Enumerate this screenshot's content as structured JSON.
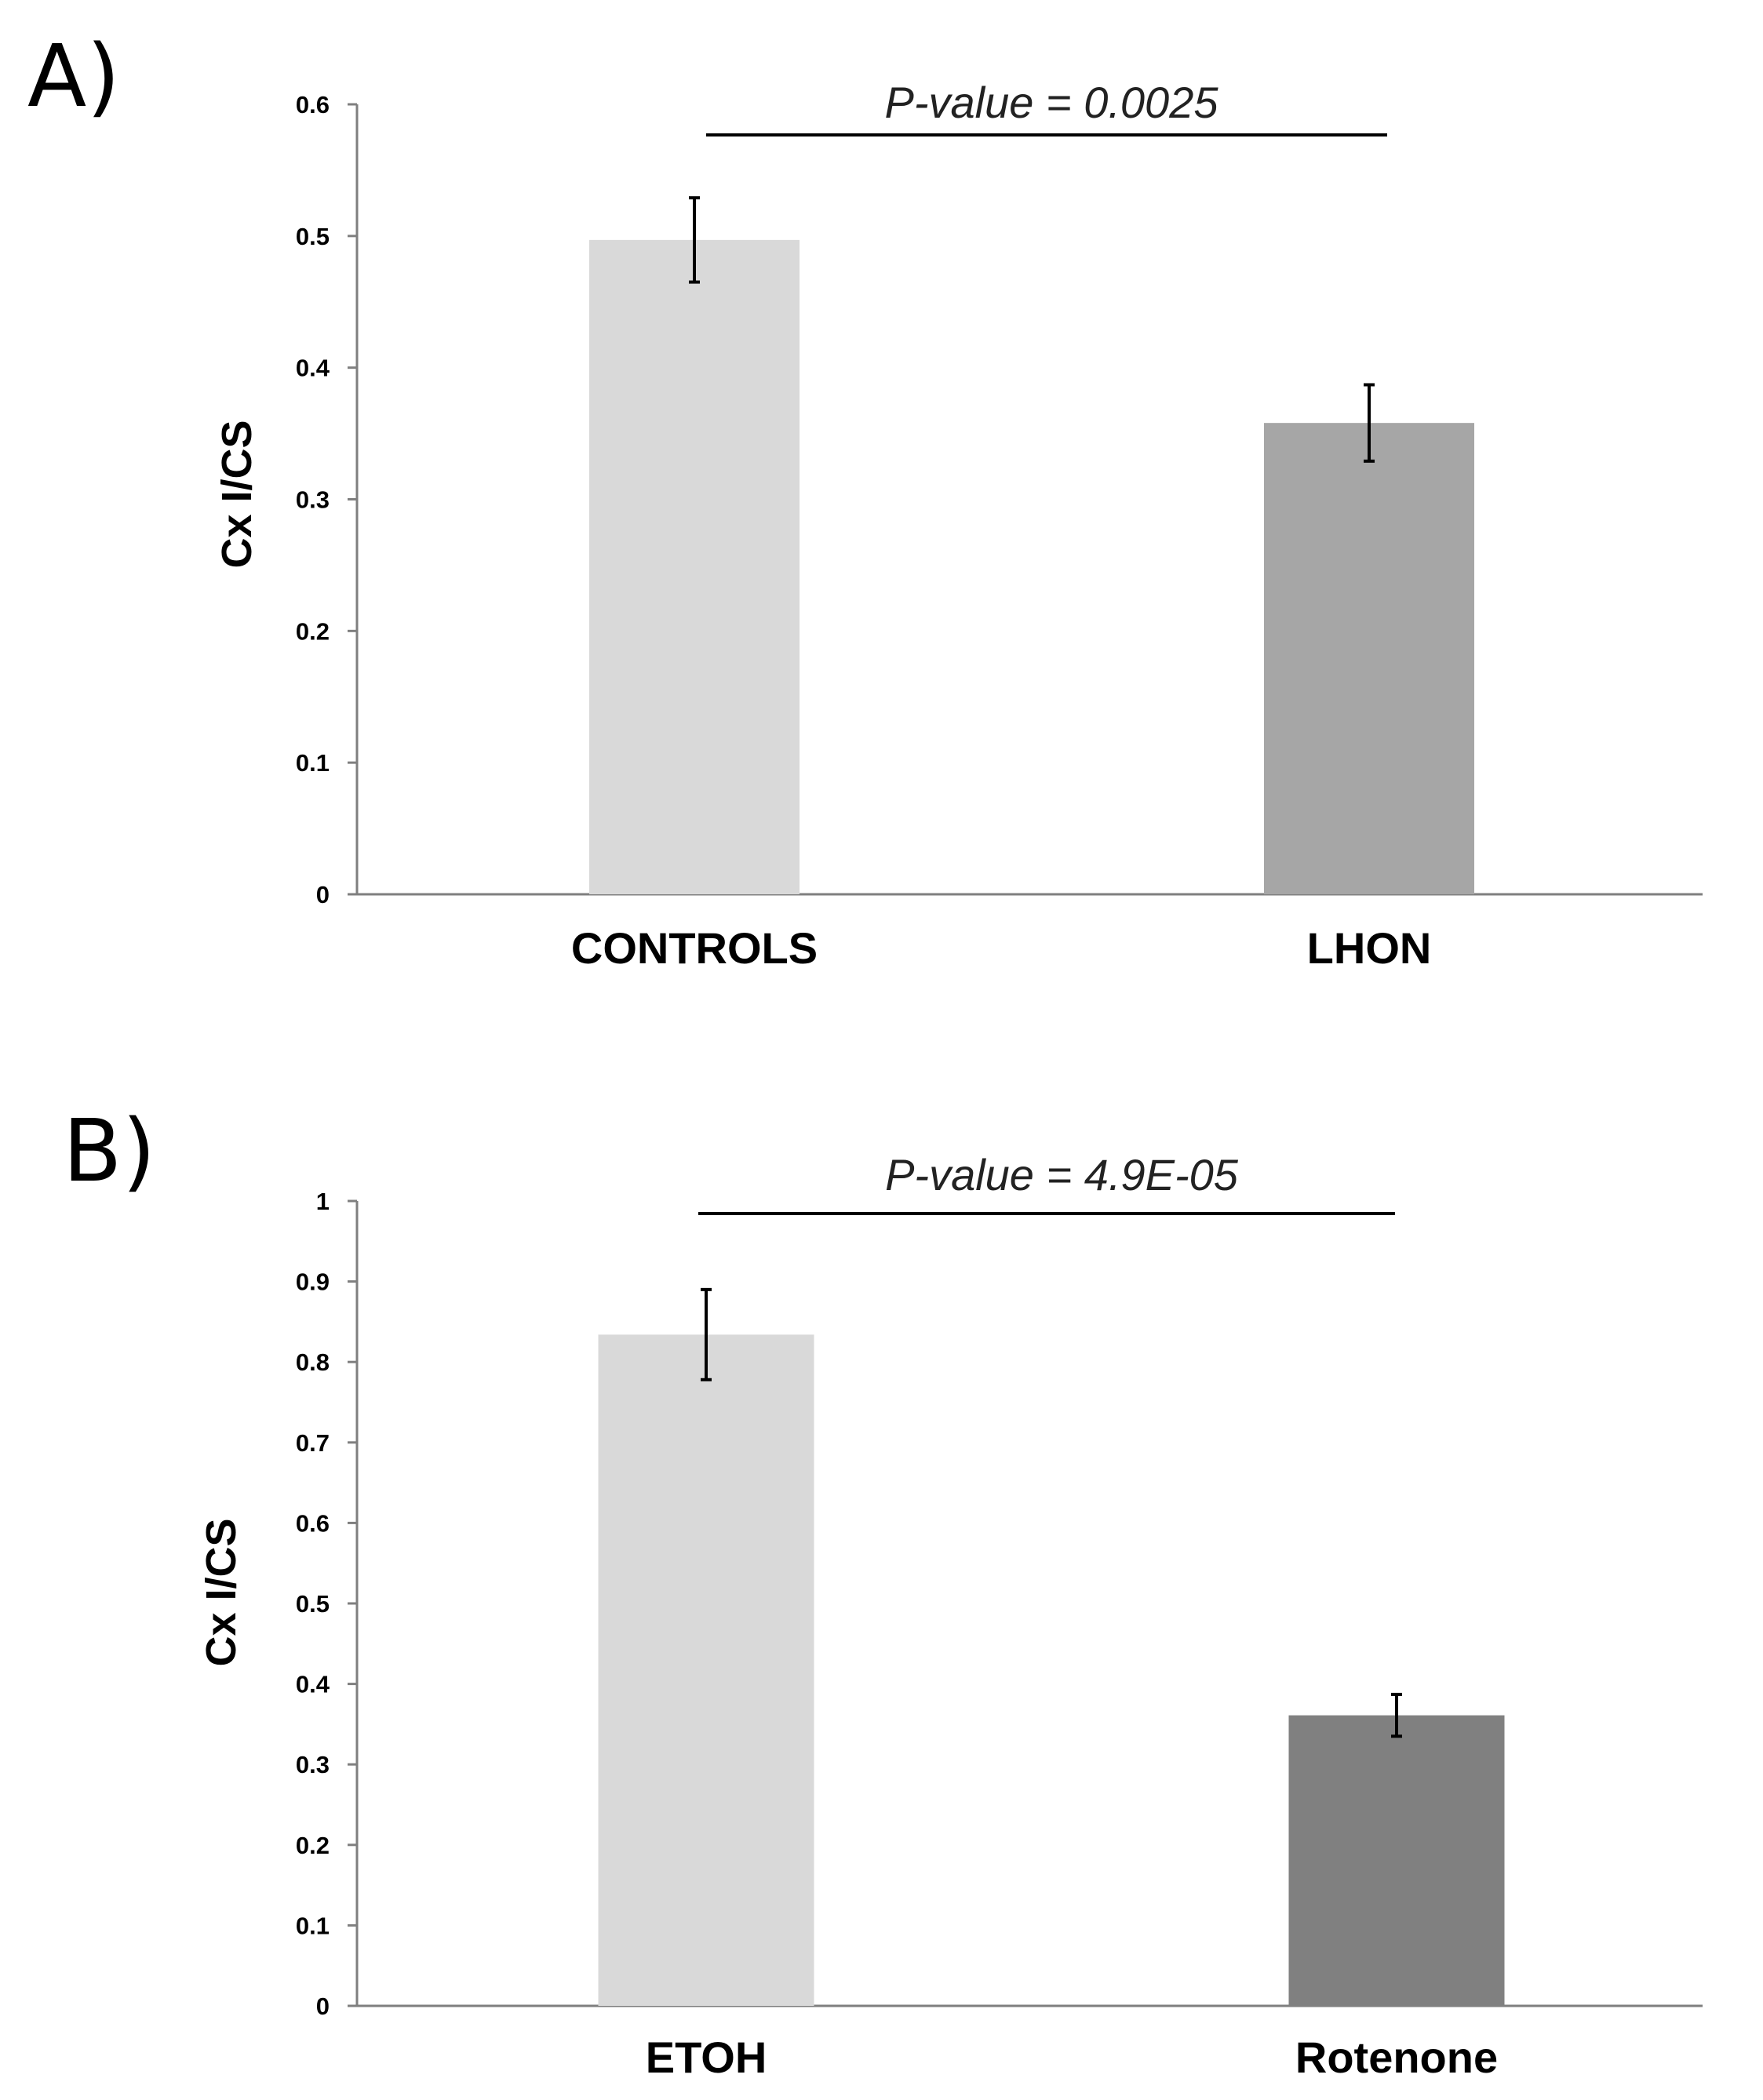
{
  "chart_data": [
    {
      "panel": "A)",
      "type": "bar",
      "ylabel": "Cx I/CS",
      "ylim": [
        0,
        0.6
      ],
      "yticks": [
        "0",
        "0.1",
        "0.2",
        "0.3",
        "0.4",
        "0.5",
        "0.6"
      ],
      "categories": [
        "CONTROLS",
        "LHON"
      ],
      "values": [
        0.497,
        0.358
      ],
      "errors": [
        0.032,
        0.029
      ],
      "colors": [
        "#d9d9d9",
        "#a6a6a6"
      ],
      "annotation": "P-value = 0.0025"
    },
    {
      "panel": "B)",
      "type": "bar",
      "ylabel": "Cx I/CS",
      "ylim": [
        0,
        1
      ],
      "yticks": [
        "0",
        "0.1",
        "0.2",
        "0.3",
        "0.4",
        "0.5",
        "0.6",
        "0.7",
        "0.8",
        "0.9",
        "1"
      ],
      "categories": [
        "ETOH",
        "Rotenone"
      ],
      "values": [
        0.834,
        0.361
      ],
      "errors": [
        0.056,
        0.026
      ],
      "colors": [
        "#d9d9d9",
        "#808080"
      ],
      "annotation": "P-value = 4.9E-05"
    }
  ]
}
